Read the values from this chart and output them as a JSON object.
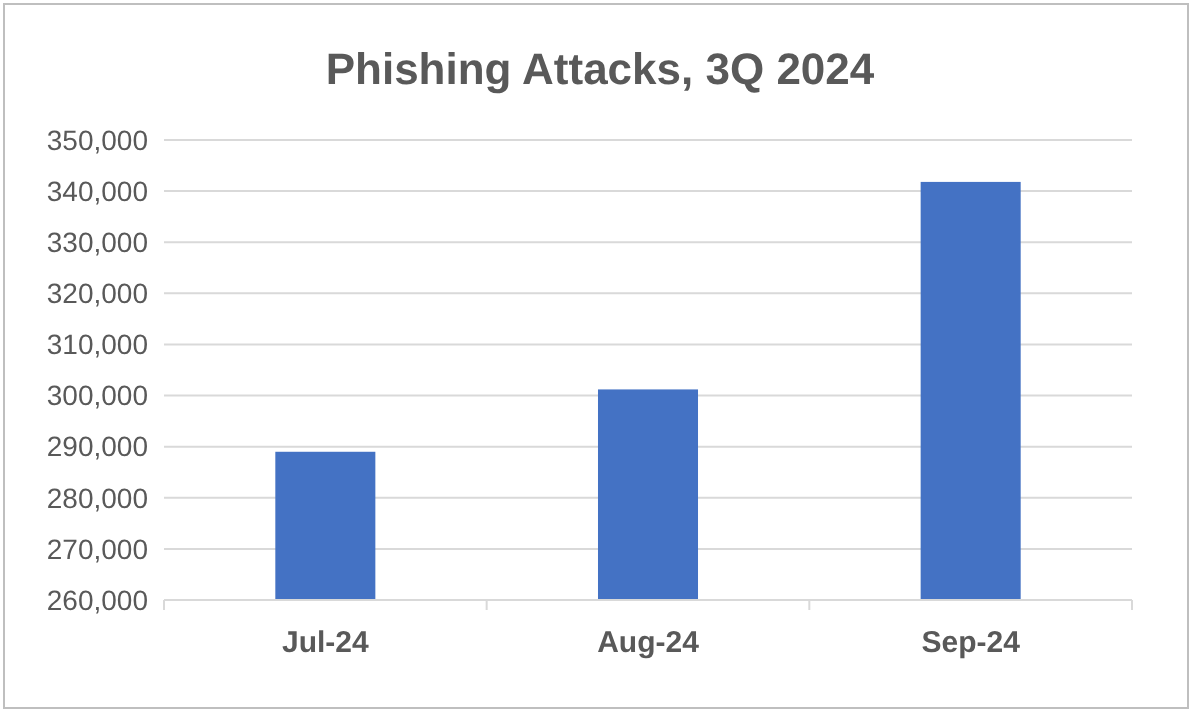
{
  "chart_data": {
    "type": "bar",
    "title": "Phishing Attacks, 3Q 2024",
    "categories": [
      "Jul-24",
      "Aug-24",
      "Sep-24"
    ],
    "values": [
      289000,
      301200,
      341800
    ],
    "color": "#4472c4",
    "ylim": [
      260000,
      350000
    ],
    "yticks": [
      {
        "value": 260000,
        "label": "260,000"
      },
      {
        "value": 270000,
        "label": "270,000"
      },
      {
        "value": 280000,
        "label": "280,000"
      },
      {
        "value": 290000,
        "label": "290,000"
      },
      {
        "value": 300000,
        "label": "300,000"
      },
      {
        "value": 310000,
        "label": "310,000"
      },
      {
        "value": 320000,
        "label": "320,000"
      },
      {
        "value": 330000,
        "label": "330,000"
      },
      {
        "value": 340000,
        "label": "340,000"
      },
      {
        "value": 350000,
        "label": "350,000"
      }
    ],
    "grid": true
  }
}
